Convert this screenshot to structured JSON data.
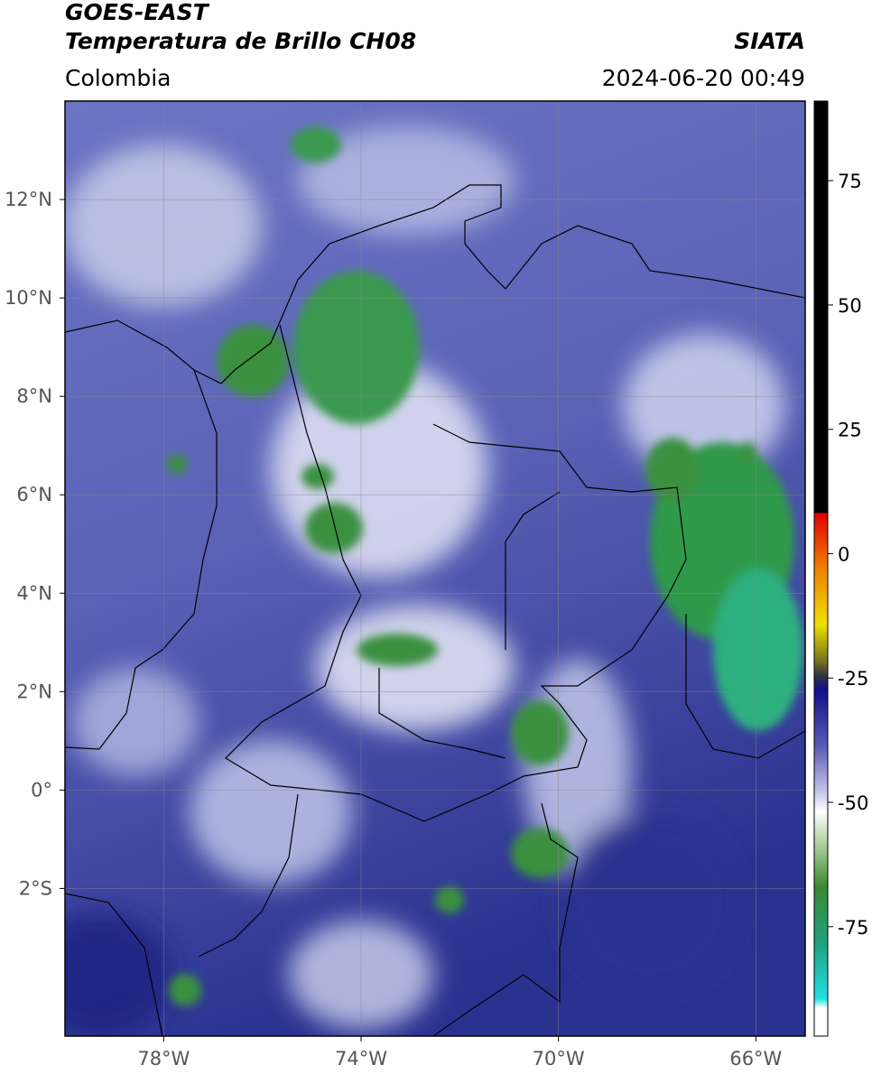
{
  "header": {
    "title": "GOES-EAST",
    "subtitle": "Temperatura de Brillo CH08",
    "region": "Colombia",
    "source": "SIATA",
    "timestamp": "2024-06-20 00:49"
  },
  "map": {
    "xlim": [
      -80,
      -65
    ],
    "ylim": [
      -5,
      14
    ],
    "grid": true,
    "xticks": [
      {
        "value": -78,
        "label": "78°W"
      },
      {
        "value": -74,
        "label": "74°W"
      },
      {
        "value": -70,
        "label": "70°W"
      },
      {
        "value": -66,
        "label": "66°W"
      }
    ],
    "yticks": [
      {
        "value": 12,
        "label": "12°N"
      },
      {
        "value": 10,
        "label": "10°N"
      },
      {
        "value": 8,
        "label": "8°N"
      },
      {
        "value": 6,
        "label": "6°N"
      },
      {
        "value": 4,
        "label": "4°N"
      },
      {
        "value": 2,
        "label": "2°N"
      },
      {
        "value": 0,
        "label": "0°"
      },
      {
        "value": -2,
        "label": "2°S"
      }
    ]
  },
  "colorbar": {
    "lim": [
      -97,
      91
    ],
    "ticks": [
      75,
      50,
      25,
      0,
      -25,
      -50,
      -75
    ]
  }
}
